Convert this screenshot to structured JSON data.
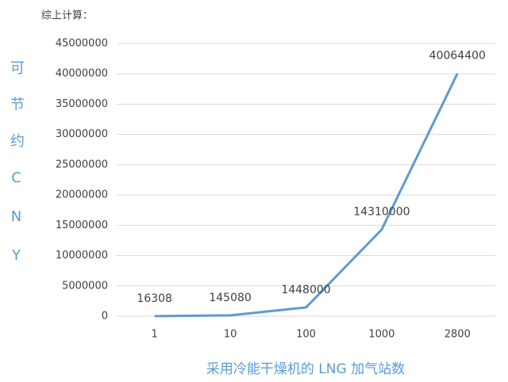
{
  "chart_data": {
    "type": "line",
    "title": "综上计算：",
    "ylabel": "可节约CNY",
    "xlabel": "采用冷能干燥机的 LNG 加气站数",
    "categories": [
      "1",
      "10",
      "100",
      "1000",
      "2800"
    ],
    "values": [
      16308,
      145080,
      1448000,
      14310000,
      40064400
    ],
    "color": "#5b9bd5",
    "ylim": [
      0,
      45000000
    ],
    "yticks": [
      0,
      5000000,
      10000000,
      15000000,
      20000000,
      25000000,
      30000000,
      35000000,
      40000000,
      45000000
    ],
    "grid": true
  }
}
